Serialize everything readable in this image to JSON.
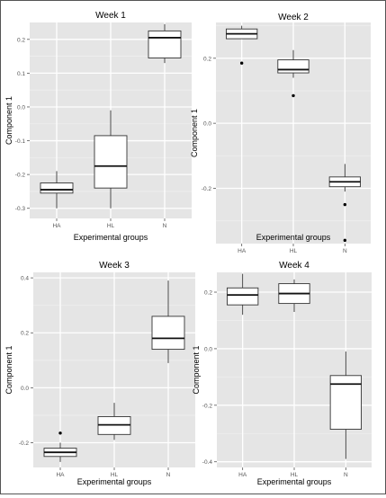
{
  "figure_style": {
    "panel_bg": "#e5e5e5",
    "grid_major": "#ffffff",
    "grid_minor": "#efefef",
    "box_fill": "#ffffff",
    "box_stroke": "#333333",
    "text_color": "#000000",
    "tick_color": "#555555"
  },
  "chart_data": [
    {
      "type": "boxplot",
      "title": "Week 1",
      "xlabel": "Experimental groups",
      "ylabel": "Component 1",
      "categories": [
        "HA",
        "HL",
        "N"
      ],
      "ylim": [
        -0.33,
        0.25
      ],
      "yticks": [
        -0.3,
        -0.2,
        -0.1,
        0.0,
        0.1,
        0.2
      ],
      "ytick_labels": [
        "-0.3",
        "-0.2",
        "-0.1",
        "0.0",
        "0.1",
        "0.2"
      ],
      "boxes": [
        {
          "group": "HA",
          "whisker_low": -0.3,
          "q1": -0.255,
          "median": -0.245,
          "q3": -0.225,
          "whisker_high": -0.19,
          "outliers": []
        },
        {
          "group": "HL",
          "whisker_low": -0.3,
          "q1": -0.24,
          "median": -0.175,
          "q3": -0.085,
          "whisker_high": -0.01,
          "outliers": []
        },
        {
          "group": "N",
          "whisker_low": 0.13,
          "q1": 0.145,
          "median": 0.205,
          "q3": 0.225,
          "whisker_high": 0.245,
          "outliers": []
        }
      ],
      "grid": true,
      "legend": "none"
    },
    {
      "type": "boxplot",
      "title": "Week 2",
      "xlabel": "Experimental groups",
      "ylabel": "Component 1",
      "categories": [
        "HA",
        "HL",
        "N"
      ],
      "ylim": [
        -0.37,
        0.31
      ],
      "yticks": [
        -0.2,
        0.0,
        0.2
      ],
      "ytick_labels": [
        "-0.2",
        "0.0",
        "0.2"
      ],
      "boxes": [
        {
          "group": "HA",
          "whisker_low": 0.26,
          "q1": 0.26,
          "median": 0.275,
          "q3": 0.29,
          "whisker_high": 0.3,
          "outliers": [
            0.185
          ]
        },
        {
          "group": "HL",
          "whisker_low": 0.14,
          "q1": 0.155,
          "median": 0.165,
          "q3": 0.195,
          "whisker_high": 0.225,
          "outliers": [
            0.085
          ]
        },
        {
          "group": "N",
          "whisker_low": -0.21,
          "q1": -0.195,
          "median": -0.18,
          "q3": -0.165,
          "whisker_high": -0.125,
          "outliers": [
            -0.25,
            -0.36
          ]
        }
      ],
      "grid": true,
      "legend": "none"
    },
    {
      "type": "boxplot",
      "title": "Week 3",
      "xlabel": "Experimental groups",
      "ylabel": "Component 1",
      "categories": [
        "HA",
        "HL",
        "N"
      ],
      "ylim": [
        -0.29,
        0.42
      ],
      "yticks": [
        -0.2,
        0.0,
        0.2,
        0.4
      ],
      "ytick_labels": [
        "-0.2",
        "0.0",
        "0.2",
        "0.4"
      ],
      "boxes": [
        {
          "group": "HA",
          "whisker_low": -0.27,
          "q1": -0.25,
          "median": -0.235,
          "q3": -0.22,
          "whisker_high": -0.2,
          "outliers": [
            -0.165
          ]
        },
        {
          "group": "HL",
          "whisker_low": -0.19,
          "q1": -0.17,
          "median": -0.135,
          "q3": -0.105,
          "whisker_high": -0.055,
          "outliers": []
        },
        {
          "group": "N",
          "whisker_low": 0.09,
          "q1": 0.14,
          "median": 0.18,
          "q3": 0.26,
          "whisker_high": 0.39,
          "outliers": []
        }
      ],
      "grid": true,
      "legend": "none"
    },
    {
      "type": "boxplot",
      "title": "Week 4",
      "xlabel": "Experimental groups",
      "ylabel": "Component 1",
      "categories": [
        "HA",
        "HL",
        "N"
      ],
      "ylim": [
        -0.42,
        0.27
      ],
      "yticks": [
        -0.4,
        -0.2,
        0.0,
        0.2
      ],
      "ytick_labels": [
        "-0.4",
        "-0.2",
        "0.0",
        "0.2"
      ],
      "boxes": [
        {
          "group": "HA",
          "whisker_low": 0.12,
          "q1": 0.155,
          "median": 0.19,
          "q3": 0.215,
          "whisker_high": 0.265,
          "outliers": []
        },
        {
          "group": "HL",
          "whisker_low": 0.13,
          "q1": 0.16,
          "median": 0.195,
          "q3": 0.23,
          "whisker_high": 0.245,
          "outliers": []
        },
        {
          "group": "N",
          "whisker_low": -0.39,
          "q1": -0.285,
          "median": -0.125,
          "q3": -0.095,
          "whisker_high": -0.01,
          "outliers": []
        }
      ],
      "grid": true,
      "legend": "none"
    }
  ]
}
